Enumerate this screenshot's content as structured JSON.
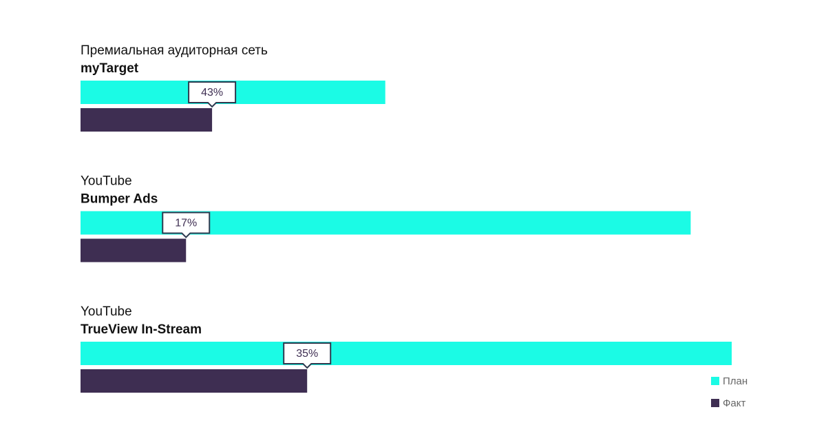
{
  "chart_data": {
    "type": "bar",
    "orientation": "horizontal",
    "category_sources": [
      "Премиальная аудиторная сеть",
      "YouTube",
      "YouTube"
    ],
    "categories": [
      "myTarget",
      "Bumper Ads",
      "TrueView In-Stream"
    ],
    "series": [
      {
        "name": "План",
        "color": "#1bfbe5",
        "values": [
          46.8,
          93.7,
          100
        ]
      },
      {
        "name": "Факт",
        "color": "#3e2e52",
        "values": [
          20.2,
          16.2,
          34.8
        ]
      }
    ],
    "shares": {
      "values": [
        43,
        17,
        35
      ],
      "value_labels": [
        "43%",
        "17%",
        "35%"
      ]
    },
    "xlim": [
      0,
      100
    ],
    "legend": "bottom-right"
  }
}
